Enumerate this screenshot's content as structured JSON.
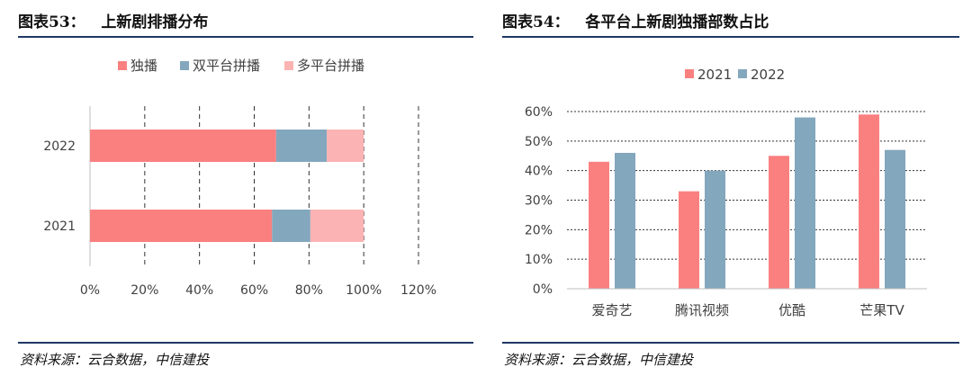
{
  "left": {
    "figure_title": "图表53：   上新剧排播分布",
    "source": "资料来源：云合数据，中信建投"
  },
  "right": {
    "figure_title": "图表54：   各平台上新剧独播部数占比",
    "source": "资料来源：云合数据，中信建投"
  },
  "chart_data": [
    {
      "type": "bar",
      "orientation": "horizontal",
      "stacked": true,
      "categories": [
        "2022",
        "2021"
      ],
      "series": [
        {
          "name": "独播",
          "values": [
            0.68,
            0.665
          ],
          "color": "#fa8080"
        },
        {
          "name": "双平台拼播",
          "values": [
            0.185,
            0.14
          ],
          "color": "#83a7bd"
        },
        {
          "name": "多平台拼播",
          "values": [
            0.135,
            0.195
          ],
          "color": "#fbb3b3"
        }
      ],
      "xlim": [
        0,
        1.2
      ],
      "xticks": [
        "0%",
        "20%",
        "40%",
        "60%",
        "80%",
        "100%",
        "120%"
      ],
      "grid": "vertical-dashed",
      "legend": "top-center"
    },
    {
      "type": "bar",
      "orientation": "vertical",
      "categories": [
        "爱奇艺",
        "腾讯视频",
        "优酷",
        "芒果TV"
      ],
      "series": [
        {
          "name": "2021",
          "values": [
            0.43,
            0.33,
            0.45,
            0.59
          ],
          "color": "#fa8080"
        },
        {
          "name": "2022",
          "values": [
            0.46,
            0.4,
            0.58,
            0.47
          ],
          "color": "#83a7bd"
        }
      ],
      "ylim": [
        0,
        0.6
      ],
      "yticks": [
        "0%",
        "10%",
        "20%",
        "30%",
        "40%",
        "50%",
        "60%"
      ],
      "grid": "horizontal-dotted",
      "legend": "top-center"
    }
  ]
}
